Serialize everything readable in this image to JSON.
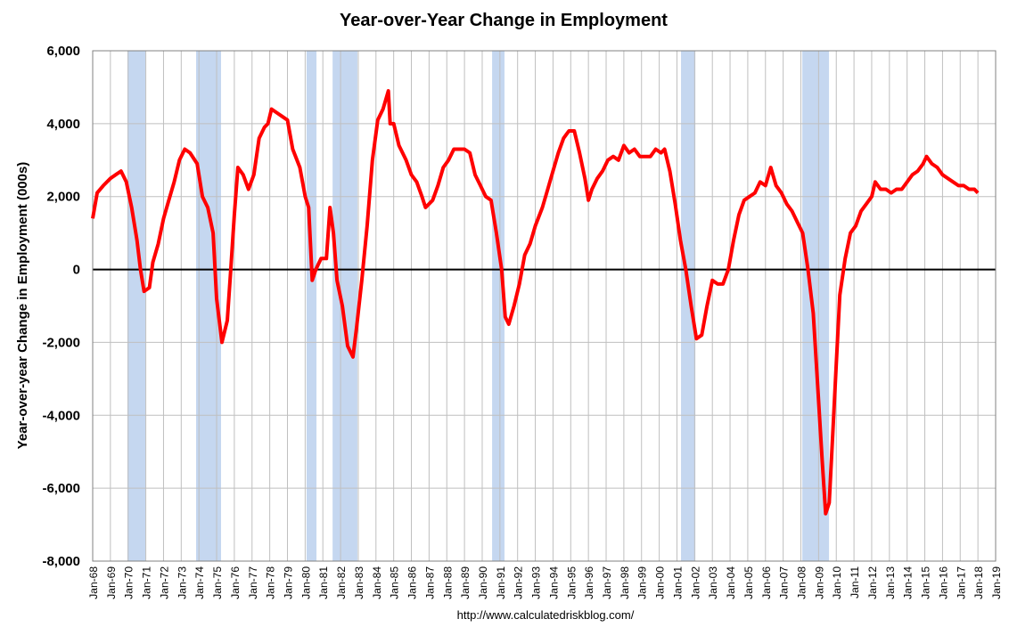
{
  "chart_data": {
    "type": "line",
    "title": "Year-over-Year Change in Employment",
    "y_label": "Year-over-year Change in Employment (000s)",
    "source": "http://www.calculatedriskblog.com/",
    "grid": true,
    "xlim": [
      1968,
      2019
    ],
    "ylim": [
      -8000,
      6000
    ],
    "yticks": [
      {
        "value": -8000,
        "label": "-8,000"
      },
      {
        "value": -6000,
        "label": "-6,000"
      },
      {
        "value": -4000,
        "label": "-4,000"
      },
      {
        "value": -2000,
        "label": "-2,000"
      },
      0,
      {
        "value": 2000,
        "label": "2,000"
      },
      {
        "value": 4000,
        "label": "4,000"
      },
      {
        "value": 6000,
        "label": "6,000"
      }
    ],
    "xticks": [
      {
        "value": 1968,
        "label": "Jan-68"
      },
      {
        "value": 1969,
        "label": "Jan-69"
      },
      {
        "value": 1970,
        "label": "Jan-70"
      },
      {
        "value": 1971,
        "label": "Jan-71"
      },
      {
        "value": 1972,
        "label": "Jan-72"
      },
      {
        "value": 1973,
        "label": "Jan-73"
      },
      {
        "value": 1974,
        "label": "Jan-74"
      },
      {
        "value": 1975,
        "label": "Jan-75"
      },
      {
        "value": 1976,
        "label": "Jan-76"
      },
      {
        "value": 1977,
        "label": "Jan-77"
      },
      {
        "value": 1978,
        "label": "Jan-78"
      },
      {
        "value": 1979,
        "label": "Jan-79"
      },
      {
        "value": 1980,
        "label": "Jan-80"
      },
      {
        "value": 1981,
        "label": "Jan-81"
      },
      {
        "value": 1982,
        "label": "Jan-82"
      },
      {
        "value": 1983,
        "label": "Jan-83"
      },
      {
        "value": 1984,
        "label": "Jan-84"
      },
      {
        "value": 1985,
        "label": "Jan-85"
      },
      {
        "value": 1986,
        "label": "Jan-86"
      },
      {
        "value": 1987,
        "label": "Jan-87"
      },
      {
        "value": 1988,
        "label": "Jan-88"
      },
      {
        "value": 1989,
        "label": "Jan-89"
      },
      {
        "value": 1990,
        "label": "Jan-90"
      },
      {
        "value": 1991,
        "label": "Jan-91"
      },
      {
        "value": 1992,
        "label": "Jan-92"
      },
      {
        "value": 1993,
        "label": "Jan-93"
      },
      {
        "value": 1994,
        "label": "Jan-94"
      },
      {
        "value": 1995,
        "label": "Jan-95"
      },
      {
        "value": 1996,
        "label": "Jan-96"
      },
      {
        "value": 1997,
        "label": "Jan-97"
      },
      {
        "value": 1998,
        "label": "Jan-98"
      },
      {
        "value": 1999,
        "label": "Jan-99"
      },
      {
        "value": 2000,
        "label": "Jan-00"
      },
      {
        "value": 2001,
        "label": "Jan-01"
      },
      {
        "value": 2002,
        "label": "Jan-02"
      },
      {
        "value": 2003,
        "label": "Jan-03"
      },
      {
        "value": 2004,
        "label": "Jan-04"
      },
      {
        "value": 2005,
        "label": "Jan-05"
      },
      {
        "value": 2006,
        "label": "Jan-06"
      },
      {
        "value": 2007,
        "label": "Jan-07"
      },
      {
        "value": 2008,
        "label": "Jan-08"
      },
      {
        "value": 2009,
        "label": "Jan-09"
      },
      {
        "value": 2010,
        "label": "Jan-10"
      },
      {
        "value": 2011,
        "label": "Jan-11"
      },
      {
        "value": 2012,
        "label": "Jan-12"
      },
      {
        "value": 2013,
        "label": "Jan-13"
      },
      {
        "value": 2014,
        "label": "Jan-14"
      },
      {
        "value": 2015,
        "label": "Jan-15"
      },
      {
        "value": 2016,
        "label": "Jan-16"
      },
      {
        "value": 2017,
        "label": "Jan-17"
      },
      {
        "value": 2018,
        "label": "Jan-18"
      },
      {
        "value": 2019,
        "label": "Jan-19"
      }
    ],
    "recessions": [
      [
        1969.96,
        1970.97
      ],
      [
        1973.84,
        1975.25
      ],
      [
        1980.08,
        1980.64
      ],
      [
        1981.55,
        1982.95
      ],
      [
        1990.56,
        1991.26
      ],
      [
        2001.23,
        2002.04
      ],
      [
        2008.08,
        2009.59
      ]
    ],
    "recession_color": "#c5d7f0",
    "x": [
      1968.0,
      1968.25,
      1968.6,
      1969.0,
      1969.3,
      1969.6,
      1969.9,
      1970.2,
      1970.5,
      1970.7,
      1970.9,
      1971.2,
      1971.4,
      1971.7,
      1972.0,
      1972.3,
      1972.6,
      1972.9,
      1973.2,
      1973.5,
      1973.9,
      1974.2,
      1974.5,
      1974.8,
      1975.0,
      1975.3,
      1975.6,
      1975.8,
      1976.0,
      1976.2,
      1976.5,
      1976.8,
      1977.1,
      1977.4,
      1977.7,
      1977.9,
      1978.1,
      1978.4,
      1978.7,
      1979.0,
      1979.3,
      1979.7,
      1980.0,
      1980.2,
      1980.4,
      1980.6,
      1980.9,
      1981.2,
      1981.4,
      1981.6,
      1981.8,
      1982.1,
      1982.4,
      1982.7,
      1982.9,
      1983.2,
      1983.5,
      1983.8,
      1984.1,
      1984.4,
      1984.7,
      1984.8,
      1985.0,
      1985.3,
      1985.7,
      1986.0,
      1986.3,
      1986.6,
      1986.8,
      1987.2,
      1987.5,
      1987.8,
      1988.1,
      1988.4,
      1988.7,
      1989.0,
      1989.3,
      1989.6,
      1989.9,
      1990.2,
      1990.5,
      1990.8,
      1991.1,
      1991.3,
      1991.5,
      1991.8,
      1992.1,
      1992.4,
      1992.7,
      1993.0,
      1993.4,
      1993.7,
      1994.0,
      1994.3,
      1994.6,
      1994.9,
      1995.2,
      1995.5,
      1995.8,
      1996.0,
      1996.2,
      1996.5,
      1996.8,
      1997.1,
      1997.4,
      1997.7,
      1998.0,
      1998.3,
      1998.6,
      1998.9,
      1999.2,
      1999.5,
      1999.8,
      2000.1,
      2000.3,
      2000.6,
      2000.9,
      2001.2,
      2001.5,
      2001.8,
      2002.1,
      2002.4,
      2002.7,
      2003.0,
      2003.3,
      2003.6,
      2003.9,
      2004.2,
      2004.5,
      2004.8,
      2005.1,
      2005.4,
      2005.7,
      2006.0,
      2006.3,
      2006.6,
      2006.9,
      2007.2,
      2007.5,
      2007.8,
      2008.1,
      2008.4,
      2008.7,
      2008.9,
      2009.2,
      2009.4,
      2009.6,
      2009.8,
      2010.0,
      2010.2,
      2010.5,
      2010.8,
      2011.1,
      2011.4,
      2011.7,
      2012.0,
      2012.2,
      2012.5,
      2012.8,
      2013.1,
      2013.4,
      2013.7,
      2014.0,
      2014.3,
      2014.6,
      2014.9,
      2015.1,
      2015.4,
      2015.7,
      2016.0,
      2016.3,
      2016.6,
      2016.9,
      2017.2,
      2017.5,
      2017.8,
      2018.0
    ],
    "series": [
      {
        "color": "#ff0000",
        "values": [
          1400,
          2100,
          2300,
          2500,
          2600,
          2700,
          2400,
          1700,
          800,
          0,
          -600,
          -500,
          200,
          700,
          1400,
          1900,
          2400,
          3000,
          3300,
          3200,
          2900,
          2000,
          1700,
          1000,
          -800,
          -2000,
          -1400,
          0,
          1500,
          2800,
          2600,
          2200,
          2600,
          3600,
          3900,
          4000,
          4400,
          4300,
          4200,
          4100,
          3300,
          2800,
          2000,
          1700,
          -300,
          0,
          300,
          300,
          1700,
          1000,
          -300,
          -1000,
          -2100,
          -2400,
          -1600,
          -300,
          1200,
          3000,
          4100,
          4400,
          4900,
          4000,
          4000,
          3400,
          3000,
          2600,
          2400,
          2000,
          1700,
          1900,
          2300,
          2800,
          3000,
          3300,
          3300,
          3300,
          3200,
          2600,
          2300,
          2000,
          1900,
          1000,
          0,
          -1300,
          -1500,
          -1000,
          -400,
          400,
          700,
          1200,
          1700,
          2200,
          2700,
          3200,
          3600,
          3800,
          3800,
          3200,
          2500,
          1900,
          2200,
          2500,
          2700,
          3000,
          3100,
          3000,
          3400,
          3200,
          3300,
          3100,
          3100,
          3100,
          3300,
          3200,
          3300,
          2700,
          1800,
          800,
          0,
          -1000,
          -1900,
          -1800,
          -1000,
          -300,
          -400,
          -400,
          0,
          800,
          1500,
          1900,
          2000,
          2100,
          2400,
          2300,
          2800,
          2300,
          2100,
          1800,
          1600,
          1300,
          1000,
          0,
          -1200,
          -2800,
          -5200,
          -6700,
          -6400,
          -4500,
          -2600,
          -700,
          300,
          1000,
          1200,
          1600,
          1800,
          2000,
          2400,
          2200,
          2200,
          2100,
          2200,
          2200,
          2400,
          2600,
          2700,
          2900,
          3100,
          2900,
          2800,
          2600,
          2500,
          2400,
          2300,
          2300,
          2200,
          2200,
          2100
        ]
      }
    ]
  }
}
